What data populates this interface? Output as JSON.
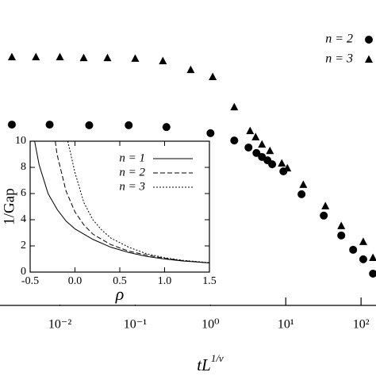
{
  "chart_data": [
    {
      "type": "scatter",
      "x_scale": "log",
      "x_label": {
        "base": "tL",
        "sup": "1/ν"
      },
      "xlim": [
        0.0016,
        158
      ],
      "ylim": [
        0,
        100
      ],
      "xticks": [
        {
          "value": 0.01,
          "label": "10⁻²"
        },
        {
          "value": 0.1,
          "label": "10⁻¹"
        },
        {
          "value": 1,
          "label": "10⁰"
        },
        {
          "value": 10,
          "label": "10¹"
        },
        {
          "value": 100,
          "label": "10²"
        }
      ],
      "legend": "top-right",
      "series": [
        {
          "name": "n = 2",
          "marker": "circle",
          "color": "#000000",
          "x": [
            0.0023,
            0.0073,
            0.0245,
            0.082,
            0.26,
            1.0,
            2.07,
            3.2,
            4.08,
            4.83,
            5.72,
            6.6,
            9.3,
            16.2,
            32,
            54.6,
            78.5,
            107,
            144
          ],
          "values": [
            59.2,
            59.2,
            59.0,
            59.0,
            58.4,
            56.4,
            54.0,
            51.7,
            49.9,
            48.6,
            47.5,
            46.2,
            43.9,
            36.4,
            29.4,
            22.9,
            18.2,
            15.1,
            10.4
          ]
        },
        {
          "name": "n = 3",
          "marker": "triangle",
          "color": "#000000",
          "x": [
            0.0023,
            0.0048,
            0.01,
            0.0207,
            0.0428,
            0.1,
            0.233,
            0.546,
            1.07,
            2.07,
            3.36,
            3.98,
            4.83,
            6.16,
            8.86,
            10.5,
            17.1,
            33.6,
            54.6,
            107,
            144
          ],
          "values": [
            81.3,
            81.3,
            81.3,
            81.0,
            81.0,
            80.8,
            80.0,
            77.1,
            74.8,
            64.9,
            57.1,
            55.1,
            52.7,
            50.6,
            46.5,
            44.9,
            39.5,
            32.5,
            26.0,
            20.8,
            15.6
          ]
        }
      ]
    },
    {
      "type": "line",
      "x_label": "ρ",
      "y_label": "1/Gap",
      "xlim": [
        -0.5,
        1.5
      ],
      "ylim": [
        0,
        10
      ],
      "xticks": [
        -0.5,
        {
          "value": 0,
          "label": "0.0"
        },
        0.5,
        {
          "value": 1,
          "label": "1.0"
        },
        1.5
      ],
      "yticks": [
        0,
        2,
        4,
        6,
        8,
        10
      ],
      "legend": "top-right",
      "series": [
        {
          "name": "n = 1",
          "dash": "solid",
          "color": "#000000",
          "x": [
            -0.45,
            -0.4,
            -0.3,
            -0.2,
            -0.1,
            0,
            0.2,
            0.4,
            0.6,
            0.8,
            1.0,
            1.2,
            1.5
          ],
          "values": [
            10,
            8.2,
            6.0,
            4.8,
            3.9,
            3.3,
            2.5,
            1.9,
            1.5,
            1.2,
            1.0,
            0.85,
            0.7
          ]
        },
        {
          "name": "n = 2",
          "dash": "dashed",
          "color": "#000000",
          "x": [
            -0.22,
            -0.2,
            -0.1,
            0,
            0.1,
            0.2,
            0.4,
            0.6,
            0.8,
            1.0,
            1.2,
            1.5
          ],
          "values": [
            10,
            9.0,
            6.2,
            4.6,
            3.6,
            2.9,
            2.1,
            1.6,
            1.3,
            1.05,
            0.88,
            0.7
          ]
        },
        {
          "name": "n = 3",
          "dash": "dotted",
          "color": "#000000",
          "x": [
            -0.08,
            0,
            0.1,
            0.2,
            0.3,
            0.4,
            0.6,
            0.8,
            1.0,
            1.2,
            1.5
          ],
          "values": [
            10,
            7.6,
            5.3,
            4.0,
            3.2,
            2.6,
            1.9,
            1.4,
            1.1,
            0.9,
            0.72
          ]
        }
      ]
    }
  ]
}
